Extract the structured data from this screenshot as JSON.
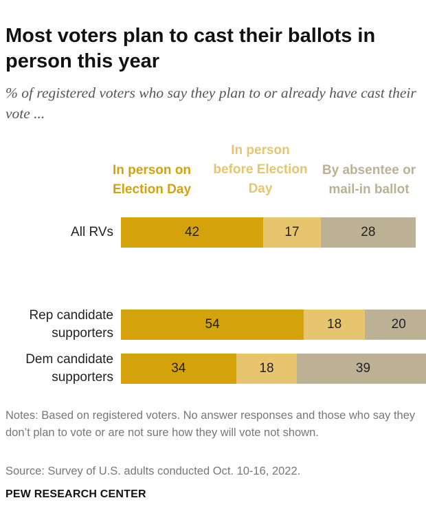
{
  "title": "Most voters plan to cast their ballots in person this year",
  "subtitle": "% of registered voters who say they plan to or already have cast their vote ...",
  "chart_data": {
    "type": "bar",
    "orientation": "horizontal",
    "stacked": true,
    "categories": [
      "All RVs",
      "Rep candidate supporters",
      "Dem candidate supporters"
    ],
    "series": [
      {
        "name": "In person on Election Day",
        "values": [
          42,
          54,
          34
        ],
        "color": "#d4a20a"
      },
      {
        "name": "In person before Election Day",
        "values": [
          17,
          18,
          18
        ],
        "color": "#e6c56e"
      },
      {
        "name": "By absentee or mail-in ballot",
        "values": [
          28,
          20,
          39
        ],
        "color": "#bcb195"
      }
    ],
    "xlim": [
      0,
      100
    ],
    "legend_position": "top"
  },
  "notes": "Notes: Based on registered voters. No answer responses and those who say they don’t plan to vote or are not sure how they will vote not shown.",
  "source": "Source: Survey of U.S. adults conducted Oct. 10-16, 2022.",
  "brand": "PEW RESEARCH CENTER"
}
